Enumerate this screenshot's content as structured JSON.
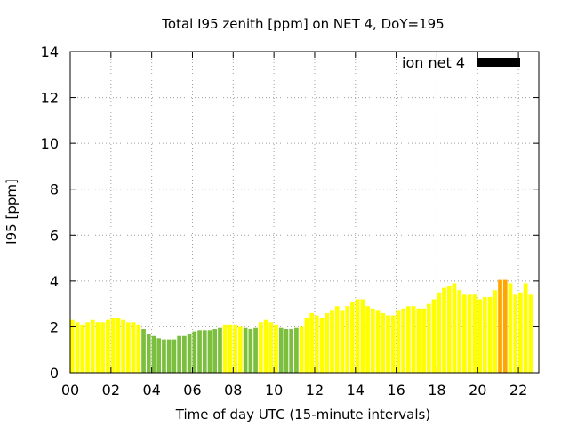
{
  "chart_data": {
    "type": "bar",
    "title": "Total I95 zenith [ppm] on NET 4, DoY=195",
    "xlabel": "Time of day UTC (15-minute intervals)",
    "ylabel": "I95 [ppm]",
    "ylim": [
      0,
      14
    ],
    "yticks": [
      "0",
      "2",
      "4",
      "6",
      "8",
      "10",
      "12",
      "14"
    ],
    "xlim": [
      0,
      23
    ],
    "xticks": [
      0,
      2,
      4,
      6,
      8,
      10,
      12,
      14,
      16,
      18,
      20,
      22
    ],
    "xtick_labels": [
      "00",
      "02",
      "04",
      "06",
      "08",
      "10",
      "12",
      "14",
      "16",
      "18",
      "20",
      "22"
    ],
    "interval_hours": 0.25,
    "grid": true,
    "legend": {
      "label": "ion net 4",
      "position": "top-right",
      "color": "#000000"
    },
    "thresholds": {
      "green_below": 2.0,
      "yellow_below": 4.0
    },
    "colors": {
      "green": "#7cbf3f",
      "yellow": "#ffff00",
      "orange": "#ffa500"
    },
    "values": [
      2.3,
      2.2,
      2.1,
      2.2,
      2.3,
      2.2,
      2.2,
      2.3,
      2.4,
      2.4,
      2.3,
      2.2,
      2.2,
      2.1,
      1.9,
      1.7,
      1.6,
      1.5,
      1.45,
      1.45,
      1.45,
      1.6,
      1.6,
      1.7,
      1.8,
      1.85,
      1.85,
      1.85,
      1.9,
      1.95,
      2.1,
      2.1,
      2.1,
      2.0,
      1.95,
      1.9,
      1.95,
      2.2,
      2.3,
      2.2,
      2.1,
      1.95,
      1.9,
      1.9,
      1.95,
      2.0,
      2.4,
      2.6,
      2.5,
      2.4,
      2.6,
      2.7,
      2.9,
      2.7,
      2.9,
      3.1,
      3.2,
      3.2,
      2.9,
      2.8,
      2.7,
      2.6,
      2.5,
      2.5,
      2.7,
      2.8,
      2.9,
      2.9,
      2.8,
      2.8,
      3.0,
      3.2,
      3.5,
      3.7,
      3.8,
      3.9,
      3.6,
      3.4,
      3.4,
      3.4,
      3.2,
      3.3,
      3.3,
      3.6,
      4.05,
      4.05,
      3.9,
      3.4,
      3.5,
      3.9,
      3.4
    ]
  }
}
